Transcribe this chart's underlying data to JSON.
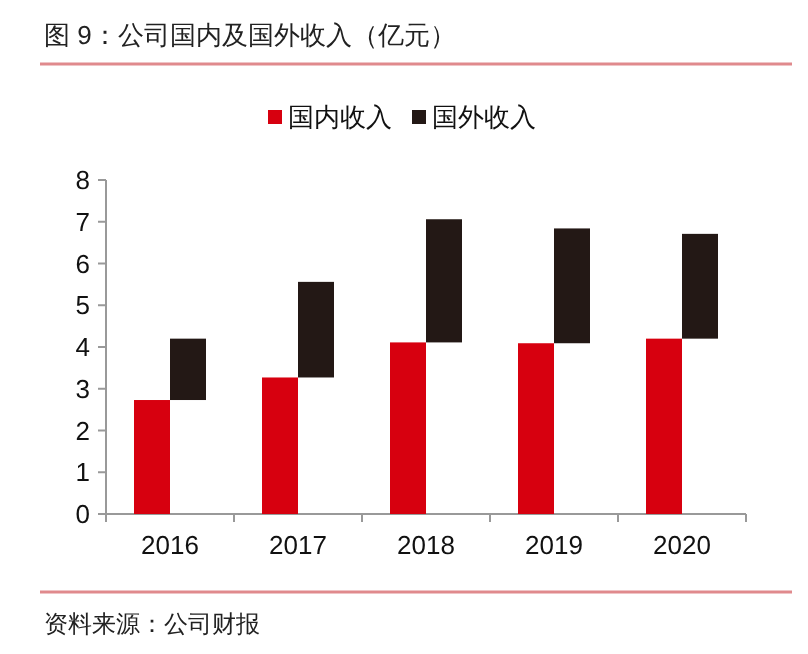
{
  "chart_data": {
    "type": "bar",
    "title": "图 9：公司国内及国外收入（亿元）",
    "categories": [
      "2016",
      "2017",
      "2018",
      "2019",
      "2020"
    ],
    "series": [
      {
        "name": "国内收入",
        "color": "#d7000f",
        "values": [
          2.73,
          3.27,
          4.11,
          4.09,
          4.2
        ]
      },
      {
        "name": "国外收入",
        "color": "#231815",
        "values": [
          1.47,
          2.29,
          2.95,
          2.75,
          2.51
        ],
        "base": [
          2.73,
          3.27,
          4.11,
          4.09,
          4.2
        ]
      }
    ],
    "ylim": [
      0,
      8
    ],
    "yticks": [
      0,
      1,
      2,
      3,
      4,
      5,
      6,
      7,
      8
    ],
    "legend": "top",
    "annotations": [
      "资料来源：公司财报"
    ]
  }
}
